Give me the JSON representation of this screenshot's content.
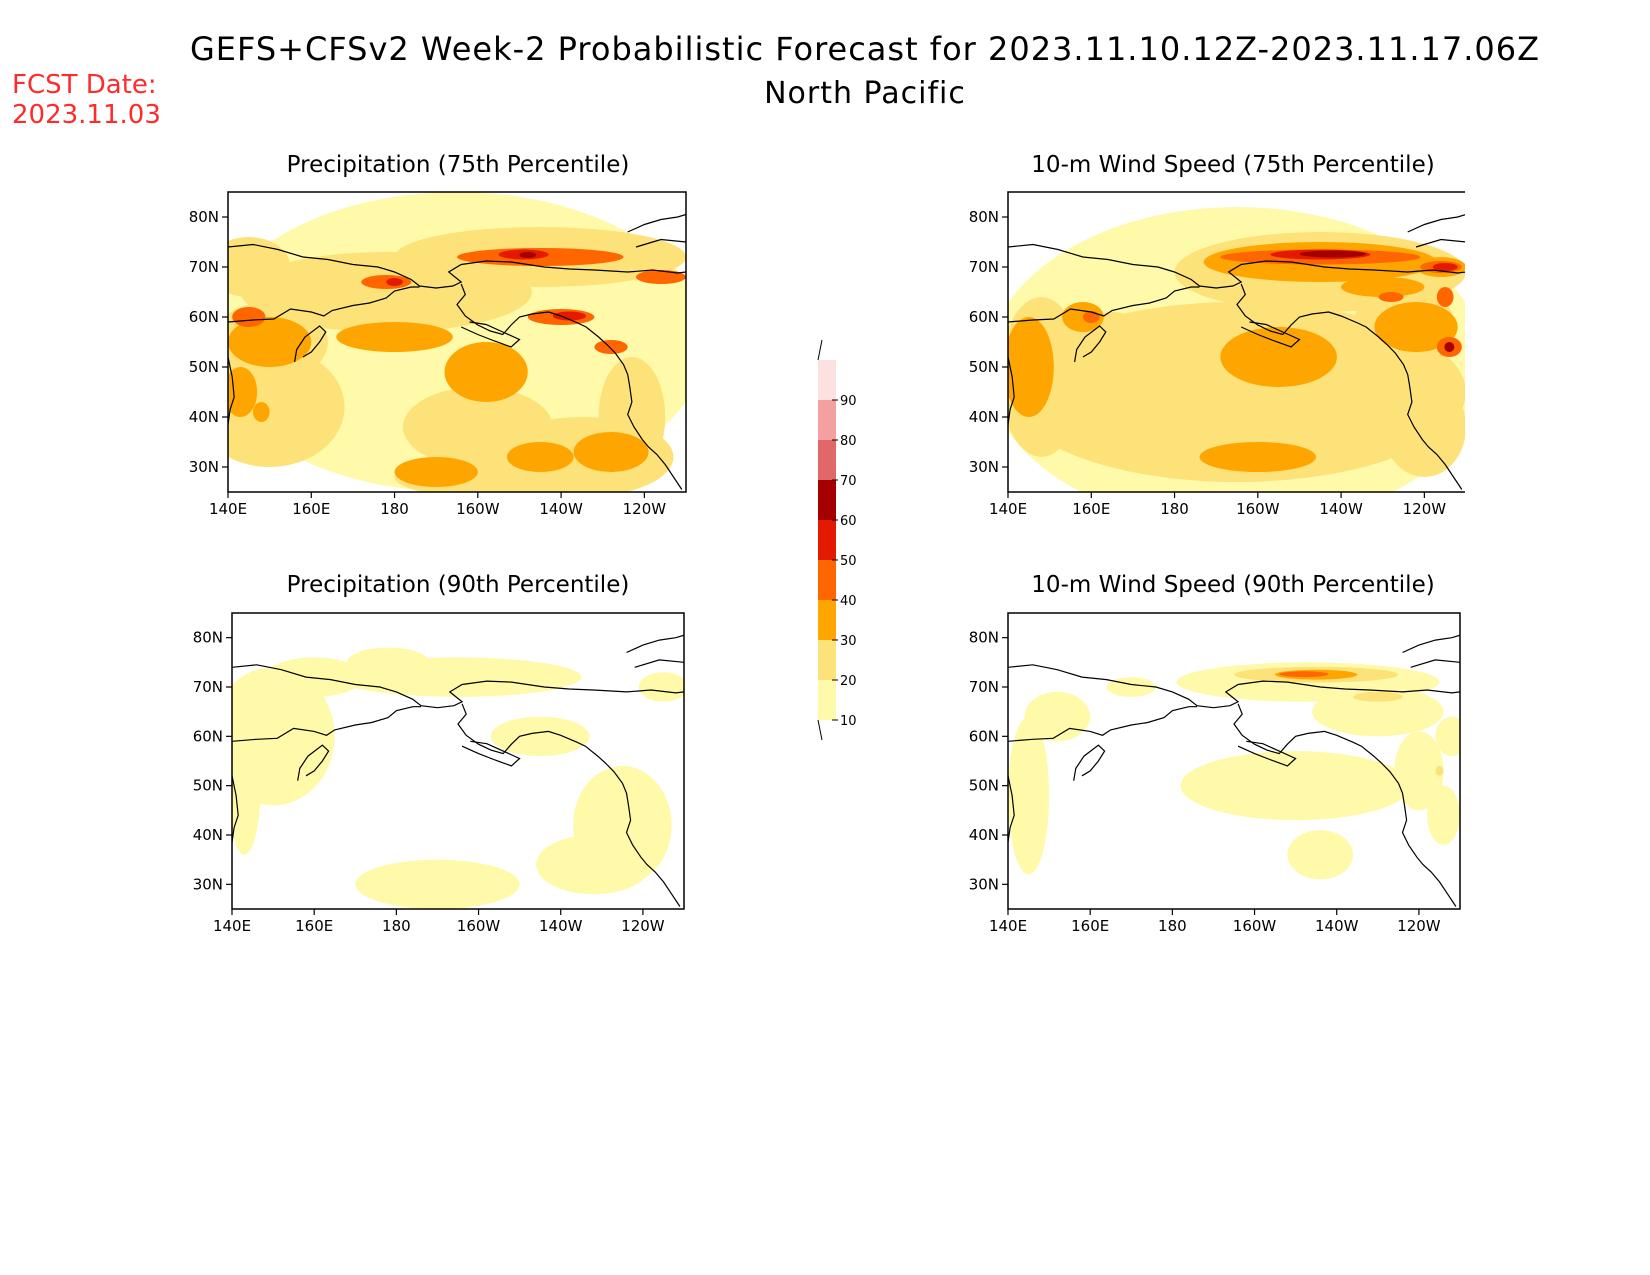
{
  "header": {
    "title": "GEFS+CFSv2 Week-2 Probabilistic Forecast for 2023.11.10.12Z-2023.11.17.06Z",
    "subtitle": "North Pacific",
    "fcst_label": "FCST Date:",
    "fcst_date": "2023.11.03"
  },
  "axes": {
    "lon_ticks": [
      "140E",
      "160E",
      "180",
      "160W",
      "140W",
      "120W"
    ],
    "lat_ticks": [
      "80N",
      "70N",
      "60N",
      "50N",
      "40N",
      "30N"
    ],
    "lon_range": [
      140,
      250
    ],
    "lat_range": [
      25,
      85
    ]
  },
  "panels": [
    {
      "id": "precip75",
      "title": "Precipitation (75th Percentile)"
    },
    {
      "id": "wind75",
      "title": "10-m Wind Speed (75th Percentile)"
    },
    {
      "id": "precip90",
      "title": "Precipitation (90th Percentile)"
    },
    {
      "id": "wind90",
      "title": "10-m Wind Speed (90th Percentile)"
    }
  ],
  "colorbar": {
    "levels": [
      "10",
      "20",
      "30",
      "40",
      "50",
      "60",
      "70",
      "80",
      "90"
    ],
    "colors": [
      "#fffaaa",
      "#fde27a",
      "#ffa500",
      "#ff6600",
      "#e31a00",
      "#a50000",
      "#e06868",
      "#f5a0a0",
      "#fde0e0"
    ]
  },
  "colors": {
    "fcst": "#ff2a2a"
  }
}
